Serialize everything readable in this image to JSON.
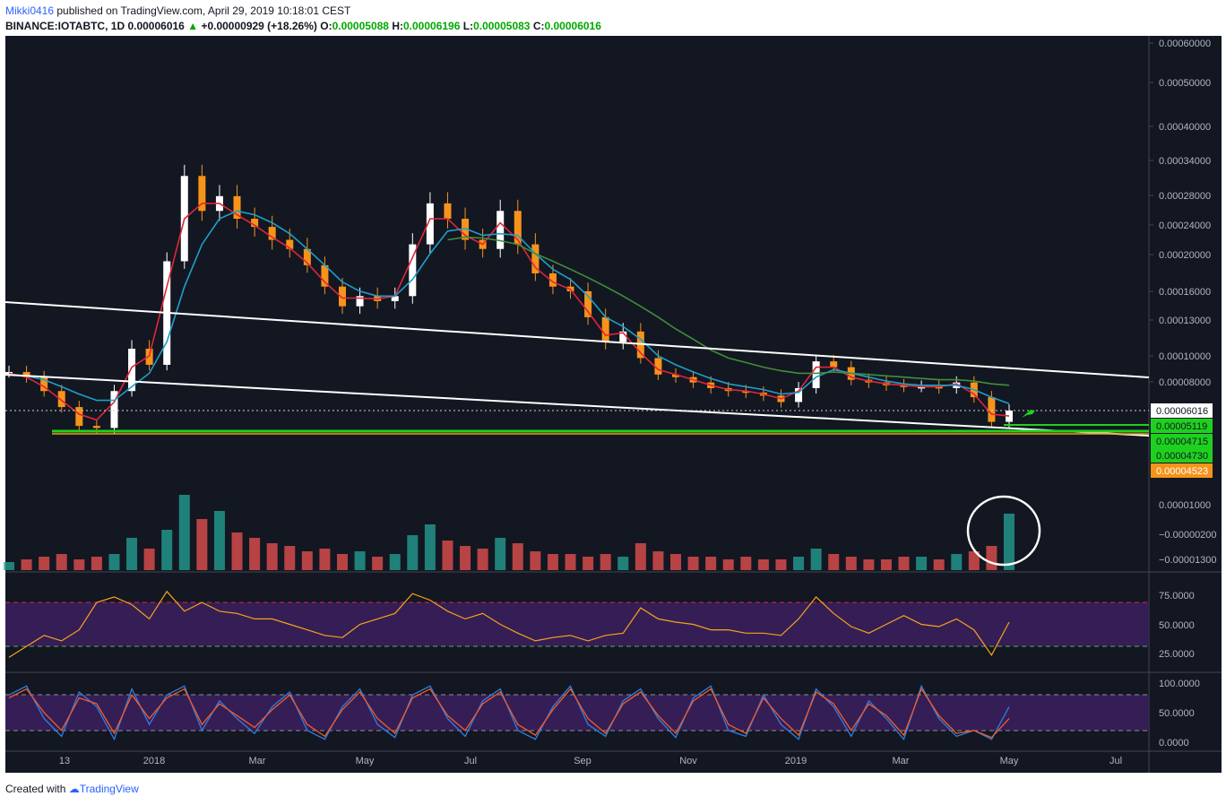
{
  "header": {
    "author": "Mikki0416",
    "published_text": " published on TradingView.com, April 29, 2019 10:18:01 CEST",
    "symbol": "BINANCE:IOTABTC, 1D",
    "last": "0.00006016",
    "change": "+0.00000929 (+18.26%)",
    "o_label": "O:",
    "o": "0.00005088",
    "h_label": "H:",
    "h": "0.00006196",
    "l_label": "L:",
    "l": "0.00005083",
    "c_label": "C:",
    "c": "0.00006016"
  },
  "footer": {
    "created_with": "Created with",
    "brand": "TradingView"
  },
  "colors": {
    "background": "#131722",
    "candle_up": "#ffffff",
    "candle_down": "#f7931a",
    "ma_red": "#e0263a",
    "ma_blue": "#1e9fc9",
    "ma_green": "#3f8f3a",
    "trendline": "#ffffff",
    "support_green": "#1fd11f",
    "support_orange": "#f7931a",
    "rsi_band": "#3a1f5c",
    "rsi_line": "#f7a21a",
    "stoch_k": "#2f7fe0",
    "stoch_d": "#f25c2c",
    "vol_up": "#26a69a",
    "vol_down": "#ef5350"
  },
  "chart_data": [
    {
      "type": "line",
      "title": "BINANCE:IOTABTC, 1D",
      "x_tick_labels": [
        "13",
        "2018",
        "Mar",
        "May",
        "Jul",
        "Sep",
        "Nov",
        "2019",
        "Mar",
        "May",
        "Jul"
      ],
      "y_tick_labels": [
        "0.00060000",
        "0.00050000",
        "0.00040000",
        "0.00034000",
        "0.00028000",
        "0.00024000",
        "0.00020000",
        "0.00016000",
        "0.00013000",
        "0.00010000",
        "0.00008000"
      ],
      "price_labels": [
        {
          "value": "0.00006016",
          "color": "#ffffff",
          "text_color": "#131722"
        },
        {
          "value": "0.00005119",
          "color": "#1fd11f",
          "text_color": "#131722"
        },
        {
          "value": "0.00004715",
          "color": "#1fd11f",
          "text_color": "#131722"
        },
        {
          "value": "0.00004730",
          "color": "#1fd11f",
          "text_color": "#131722"
        },
        {
          "value": "0.00004523",
          "color": "#f7931a",
          "text_color": "#ffffff"
        }
      ],
      "y_scale": "log",
      "series": [
        {
          "values": [
            8.6e-05,
            8.2e-05,
            7.2e-05,
            6.2e-05,
            5.2e-05,
            5.1e-05,
            7.2e-05,
            0.000105,
            9.2e-05,
            0.00019,
            0.0003,
            0.00025,
            0.00027,
            0.00024,
            0.00023,
            0.000215,
            0.000205,
            0.000185,
            0.00016,
            0.00014,
            0.00015,
            0.000145,
            0.00015,
            0.00021,
            0.00026,
            0.00024,
            0.000215,
            0.000205,
            0.00025,
            0.00021,
            0.000175,
            0.00016,
            0.000155,
            0.00013,
            0.00011,
            0.000118,
            9.8e-05,
            8.4e-05,
            8.2e-05,
            7.8e-05,
            7.4e-05,
            7.2e-05,
            7.1e-05,
            6.9e-05,
            6.5e-05,
            7.4e-05,
            9.5e-05,
            9e-05,
            8e-05,
            7.8e-05,
            7.6e-05,
            7.5e-05,
            7.5e-05,
            7.4e-05,
            7.8e-05,
            6.8e-05,
            5.4e-05,
            6e-05
          ]
        },
        {
          "values": [
            8.5e-05,
            8.2e-05,
            7.5e-05,
            6.6e-05,
            5.8e-05,
            5.5e-05,
            6.5e-05,
            9e-05,
            0.0001,
            0.00016,
            0.00024,
            0.00026,
            0.00026,
            0.000245,
            0.000232,
            0.000218,
            0.000206,
            0.000188,
            0.000165,
            0.000148,
            0.000148,
            0.000147,
            0.00015,
            0.000195,
            0.00024,
            0.00024,
            0.00022,
            0.00021,
            0.000235,
            0.000215,
            0.000182,
            0.000165,
            0.000157,
            0.000135,
            0.000115,
            0.000117,
            0.000102,
            8.8e-05,
            8.4e-05,
            8e-05,
            7.6e-05,
            7.3e-05,
            7.2e-05,
            7e-05,
            6.7e-05,
            7.2e-05,
            9e-05,
            9e-05,
            8.2e-05,
            7.9e-05,
            7.7e-05,
            7.6e-05,
            7.5e-05,
            7.5e-05,
            7.7e-05,
            7e-05,
            5.8e-05,
            5.7e-05
          ],
          "color": "#e0263a"
        },
        {
          "values": [
            8.4e-05,
            8.3e-05,
            8e-05,
            7.5e-05,
            7e-05,
            6.6e-05,
            6.6e-05,
            7.5e-05,
            8.5e-05,
            0.00011,
            0.00016,
            0.00021,
            0.00024,
            0.00025,
            0.000245,
            0.000235,
            0.000222,
            0.000205,
            0.000185,
            0.000165,
            0.000155,
            0.00015,
            0.00015,
            0.000168,
            0.0002,
            0.000225,
            0.000228,
            0.00022,
            0.000222,
            0.00022,
            0.0002,
            0.00018,
            0.000168,
            0.00015,
            0.00013,
            0.000122,
            0.000112,
            0.0001,
            9.2e-05,
            8.6e-05,
            8.1e-05,
            7.7e-05,
            7.5e-05,
            7.3e-05,
            7e-05,
            7.1e-05,
            8.2e-05,
            8.8e-05,
            8.5e-05,
            8.2e-05,
            7.9e-05,
            7.7e-05,
            7.6e-05,
            7.6e-05,
            7.6e-05,
            7.3e-05,
            6.8e-05,
            6.4e-05
          ],
          "color": "#1e9fc9"
        },
        {
          "values": [
            null,
            null,
            null,
            null,
            null,
            null,
            null,
            null,
            null,
            null,
            null,
            null,
            null,
            null,
            null,
            null,
            null,
            null,
            null,
            null,
            null,
            null,
            null,
            null,
            null,
            0.000215,
            0.000218,
            0.000217,
            0.000214,
            0.00021,
            0.0002,
            0.00019,
            0.00018,
            0.00017,
            0.00016,
            0.00015,
            0.00014,
            0.00013,
            0.00012,
            0.000112,
            0.000104,
            9.8e-05,
            9.4e-05,
            9e-05,
            8.7e-05,
            8.5e-05,
            8.5e-05,
            8.6e-05,
            8.5e-05,
            8.4e-05,
            8.3e-05,
            8.2e-05,
            8.1e-05,
            8e-05,
            8e-05,
            7.9e-05,
            7.7e-05,
            7.6e-05
          ],
          "color": "#3f8f3a"
        }
      ]
    },
    {
      "type": "bar",
      "title": "Volume",
      "y_tick_labels": [
        "0.00001000",
        "−0.00000200",
        "−0.00001300"
      ],
      "values": [
        0.3,
        0.4,
        0.5,
        0.6,
        0.4,
        0.5,
        0.6,
        1.2,
        0.8,
        1.5,
        2.8,
        1.9,
        2.2,
        1.4,
        1.2,
        1.0,
        0.9,
        0.7,
        0.8,
        0.6,
        0.7,
        0.5,
        0.6,
        1.3,
        1.7,
        1.1,
        0.9,
        0.8,
        1.2,
        1.0,
        0.7,
        0.6,
        0.6,
        0.5,
        0.6,
        0.5,
        1.0,
        0.7,
        0.6,
        0.5,
        0.5,
        0.4,
        0.5,
        0.4,
        0.4,
        0.5,
        0.8,
        0.6,
        0.5,
        0.4,
        0.4,
        0.5,
        0.5,
        0.4,
        0.6,
        0.7,
        0.9,
        2.1
      ]
    },
    {
      "type": "line",
      "title": "RSI",
      "y_tick_labels": [
        "75.0000",
        "50.0000",
        "25.0000"
      ],
      "upper": 70,
      "lower": 30,
      "values": [
        20,
        30,
        40,
        35,
        45,
        70,
        75,
        68,
        55,
        80,
        62,
        70,
        62,
        60,
        55,
        55,
        50,
        45,
        40,
        38,
        50,
        55,
        60,
        78,
        72,
        62,
        55,
        60,
        50,
        42,
        35,
        38,
        40,
        35,
        40,
        42,
        65,
        55,
        52,
        50,
        45,
        45,
        42,
        42,
        40,
        55,
        75,
        60,
        48,
        42,
        50,
        58,
        50,
        48,
        55,
        45,
        22,
        52
      ]
    },
    {
      "type": "line",
      "title": "Stoch RSI",
      "y_tick_labels": [
        "100.0000",
        "50.0000",
        "0.0000"
      ],
      "upper": 80,
      "lower": 20,
      "series": [
        {
          "name": "K",
          "values": [
            80,
            95,
            40,
            10,
            85,
            60,
            5,
            90,
            30,
            80,
            95,
            20,
            70,
            40,
            15,
            60,
            85,
            20,
            5,
            60,
            90,
            30,
            8,
            80,
            95,
            40,
            10,
            70,
            90,
            20,
            5,
            60,
            95,
            30,
            10,
            70,
            90,
            40,
            8,
            75,
            95,
            20,
            10,
            80,
            30,
            5,
            90,
            60,
            10,
            70,
            40,
            5,
            95,
            40,
            10,
            20,
            5,
            60
          ],
          "color": "#2f7fe0"
        },
        {
          "name": "D",
          "values": [
            75,
            90,
            50,
            20,
            75,
            65,
            15,
            80,
            40,
            75,
            90,
            30,
            65,
            45,
            25,
            55,
            80,
            30,
            10,
            55,
            85,
            40,
            15,
            75,
            90,
            45,
            20,
            65,
            85,
            30,
            12,
            55,
            90,
            40,
            15,
            65,
            85,
            45,
            15,
            70,
            90,
            30,
            15,
            75,
            40,
            12,
            85,
            65,
            20,
            65,
            45,
            12,
            90,
            45,
            15,
            20,
            8,
            40
          ],
          "color": "#f25c2c"
        }
      ]
    }
  ]
}
